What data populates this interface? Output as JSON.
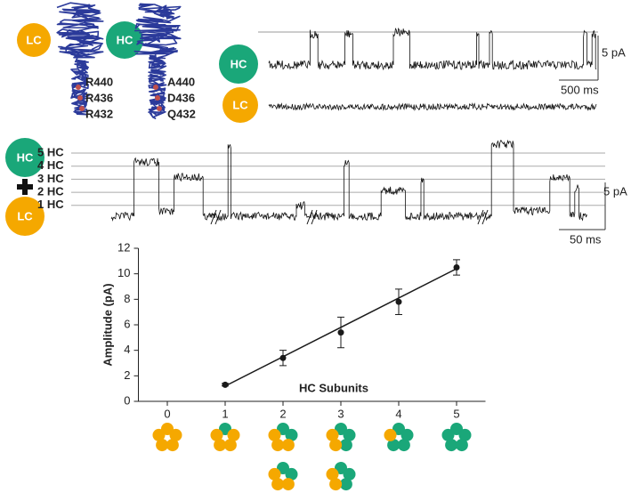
{
  "labels": {
    "lc": "LC",
    "hc": "HC",
    "wild_type_residues": [
      "R440",
      "R436",
      "R432"
    ],
    "mutant_residues": [
      "A440",
      "D436",
      "Q432"
    ],
    "levels": [
      "5 HC",
      "4 HC",
      "3 HC",
      "2 HC",
      "1 HC"
    ],
    "current_scale": "5 pA",
    "time_scale_long": "500 ms",
    "time_scale_short": "50 ms"
  },
  "chart_data": {
    "type": "scatter",
    "x_label": "HC Subunits",
    "y_label": "Amplitude (pA)",
    "x": [
      1,
      2,
      3,
      4,
      5
    ],
    "values": [
      1.3,
      3.4,
      5.4,
      7.8,
      10.5
    ],
    "errors": [
      0.1,
      0.6,
      1.2,
      1.0,
      0.6
    ],
    "fit": {
      "x": [
        1,
        5
      ],
      "values": [
        1.2,
        10.4
      ]
    },
    "xlim": [
      -0.5,
      5.5
    ],
    "ylim": [
      0,
      12
    ],
    "xticks": [
      0,
      1,
      2,
      3,
      4,
      5
    ],
    "yticks": [
      0,
      2,
      4,
      6,
      8,
      10,
      12
    ],
    "color": "#1a1a1a",
    "hc_color": "#1aa779",
    "lc_color": "#f5a800"
  }
}
